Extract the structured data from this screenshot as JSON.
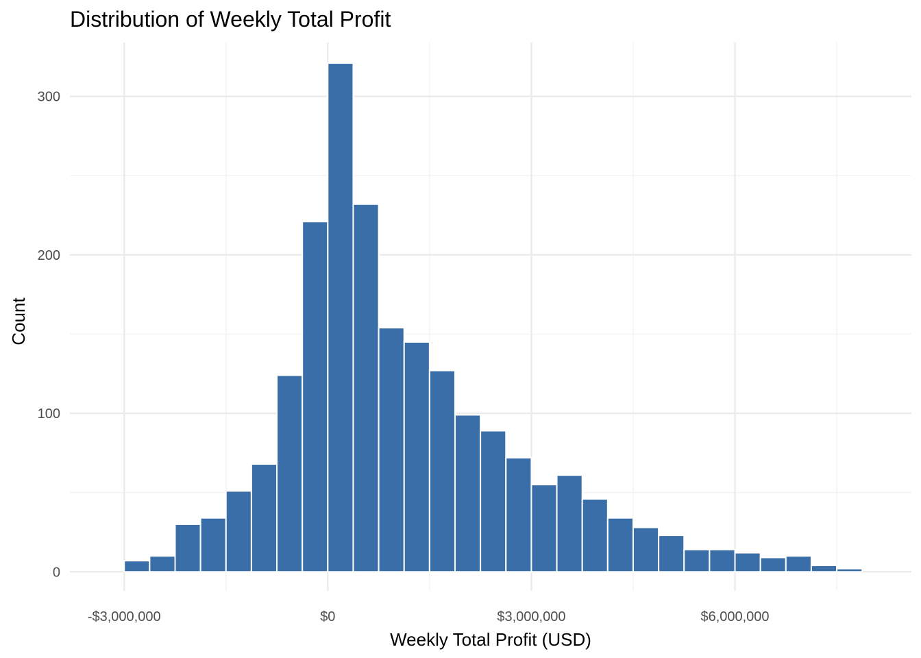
{
  "chart_data": {
    "type": "bar",
    "title": "Distribution of Weekly Total Profit",
    "xlabel": "Weekly Total Profit (USD)",
    "ylabel": "Count",
    "bin_width": 375000,
    "bin_starts": [
      -3375000,
      -3000000,
      -2625000,
      -2250000,
      -1875000,
      -1500000,
      -1125000,
      -750000,
      -375000,
      0,
      375000,
      750000,
      1125000,
      1500000,
      1875000,
      2250000,
      2625000,
      3000000,
      3375000,
      3750000,
      4125000,
      4500000,
      4875000,
      5250000,
      5625000,
      6000000,
      6375000,
      6750000,
      7125000,
      7500000,
      7875000
    ],
    "values": [
      0,
      7,
      10,
      30,
      34,
      51,
      68,
      124,
      221,
      321,
      232,
      154,
      145,
      127,
      99,
      89,
      72,
      55,
      61,
      46,
      34,
      28,
      23,
      14,
      14,
      12,
      9,
      10,
      4,
      2,
      0
    ],
    "xlim": [
      -3800000,
      8600000
    ],
    "ylim": [
      -12,
      334
    ],
    "x_ticks": [
      {
        "value": -3000000,
        "label": "-$3,000,000"
      },
      {
        "value": 0,
        "label": "$0"
      },
      {
        "value": 3000000,
        "label": "$3,000,000"
      },
      {
        "value": 6000000,
        "label": "$6,000,000"
      }
    ],
    "x_minor_ticks": [
      -1500000,
      1500000,
      4500000,
      7500000
    ],
    "y_ticks": [
      {
        "value": 0,
        "label": "0"
      },
      {
        "value": 100,
        "label": "100"
      },
      {
        "value": 200,
        "label": "200"
      },
      {
        "value": 300,
        "label": "300"
      }
    ],
    "y_minor_ticks": [
      50,
      150,
      250
    ],
    "grid": true,
    "legend": "none",
    "bar_color": "#3a6ea8",
    "bar_outline_color": "#ffffff",
    "grid_color": "#ebebeb",
    "background_color": "#ffffff"
  }
}
